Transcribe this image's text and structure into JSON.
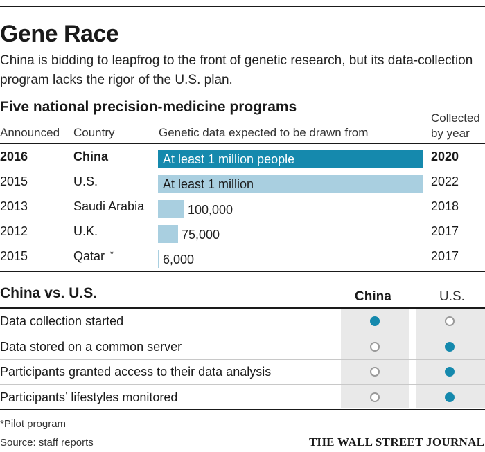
{
  "title": "Gene Race",
  "subtitle": "China is bidding to leapfrog to the front of genetic research, but its data-collection program lacks the rigor of the U.S. plan.",
  "colors": {
    "bar_highlight": "#1589ad",
    "bar_default": "#a9cfe0",
    "dot_filled": "#1589ad",
    "shade": "#e9e9e9"
  },
  "chart_data": {
    "type": "bar",
    "orientation": "horizontal",
    "title": "Five national precision-medicine programs",
    "columns": {
      "announced": "Announced",
      "country": "Country",
      "genetic": "Genetic data expected to be drawn from",
      "collected": "Collected by year"
    },
    "rows": [
      {
        "announced": "2016",
        "country": "China",
        "value": 1000000,
        "label": "At least 1 million people",
        "collected": "2020",
        "highlight": true
      },
      {
        "announced": "2015",
        "country": "U.S.",
        "value": 1000000,
        "label": "At least 1 million",
        "collected": "2022",
        "highlight": false
      },
      {
        "announced": "2013",
        "country": "Saudi Arabia",
        "value": 100000,
        "label": "100,000",
        "collected": "2018",
        "highlight": false
      },
      {
        "announced": "2012",
        "country": "U.K.",
        "value": 75000,
        "label": "75,000",
        "collected": "2017",
        "highlight": false
      },
      {
        "announced": "2015",
        "country": "Qatar",
        "country_mark": "*",
        "value": 6000,
        "label": "6,000",
        "collected": "2017",
        "highlight": false
      }
    ]
  },
  "comparison": {
    "title": "China vs. U.S.",
    "columns": [
      "China",
      "U.S."
    ],
    "rows": [
      {
        "label": "Data collection started",
        "china": true,
        "us": false
      },
      {
        "label": "Data stored on a common server",
        "china": false,
        "us": true
      },
      {
        "label": "Participants granted access to their data analysis",
        "china": false,
        "us": true
      },
      {
        "label": "Participants’ lifestyles monitored",
        "china": false,
        "us": true
      }
    ]
  },
  "footnote": "*Pilot program",
  "source": "Source: staff reports",
  "logo": "THE WALL STREET JOURNAL."
}
